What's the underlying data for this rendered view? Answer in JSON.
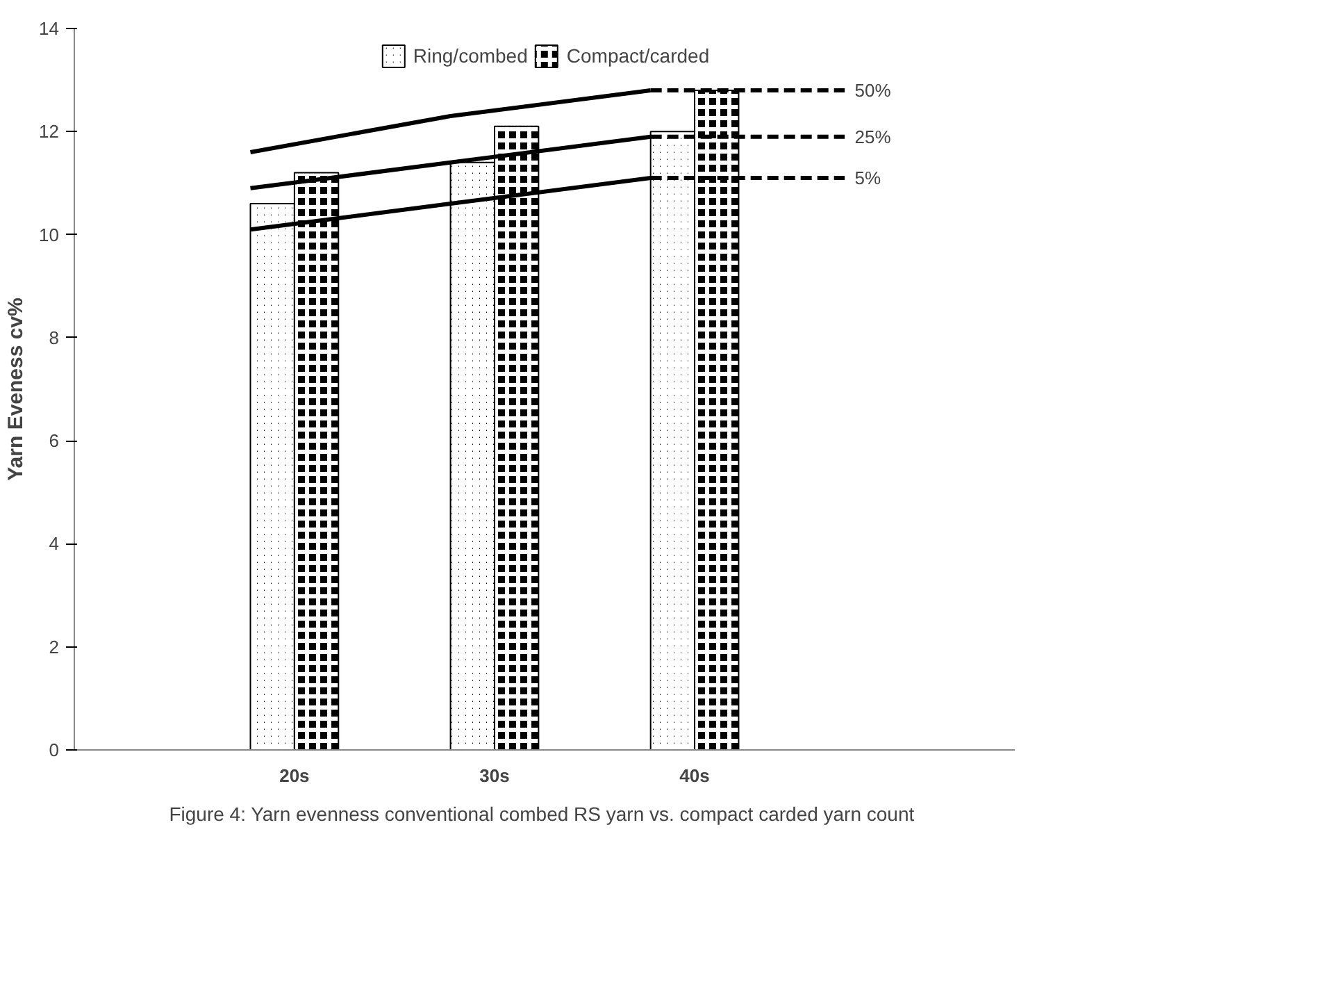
{
  "chart_data": {
    "type": "bar",
    "categories": [
      "20s",
      "30s",
      "40s"
    ],
    "ylabel": "Yarn Eveness cv%",
    "ylim": [
      0,
      14
    ],
    "yticks": [
      0,
      2,
      4,
      6,
      8,
      10,
      12,
      14
    ],
    "grid": false,
    "legend": "top",
    "series": [
      {
        "name": "Ring/combed",
        "color": "#000000",
        "values": [
          10.6,
          11.4,
          12.0
        ]
      },
      {
        "name": "Compact/carded",
        "color": "#000000",
        "values": [
          11.2,
          12.1,
          12.8
        ]
      },
      {
        "name": "50%",
        "type": "line",
        "color": "#000000",
        "values": [
          11.6,
          12.3,
          12.8
        ]
      },
      {
        "name": "25%",
        "type": "line",
        "color": "#000000",
        "values": [
          10.9,
          11.4,
          11.9
        ]
      },
      {
        "name": "5%",
        "type": "line",
        "color": "#000000",
        "values": [
          10.1,
          10.6,
          11.1
        ]
      }
    ],
    "annotations": [
      "Figure 4:  Yarn evenness conventional combed RS yarn vs. compact carded yarn count"
    ]
  }
}
